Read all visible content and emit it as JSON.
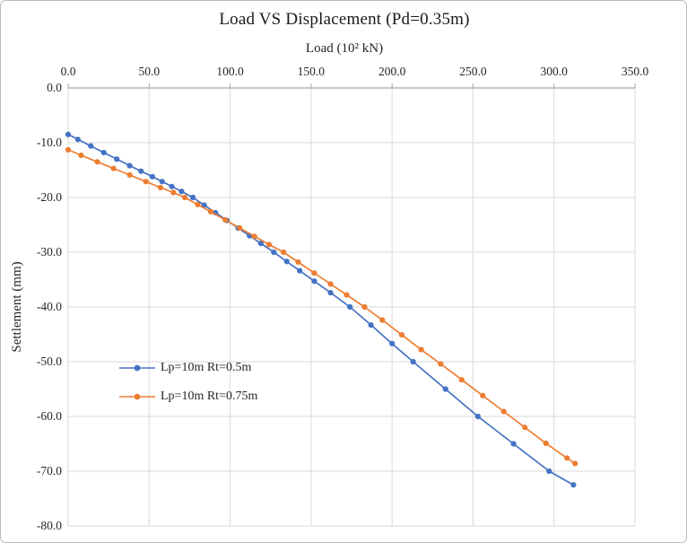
{
  "chart_data": {
    "type": "line",
    "title": "Load VS Displacement  (Pd=0.35m)",
    "xlabel": "Load (10² kN)",
    "ylabel": "Settlement (mm)",
    "xlim": [
      0,
      350
    ],
    "ylim": [
      -80,
      0
    ],
    "x_ticks": [
      0,
      50,
      100,
      150,
      200,
      250,
      300,
      350
    ],
    "x_tick_labels": [
      "0.0",
      "50.0",
      "100.0",
      "150.0",
      "200.0",
      "250.0",
      "300.0",
      "350.0"
    ],
    "y_ticks": [
      0,
      -10,
      -20,
      -30,
      -40,
      -50,
      -60,
      -70,
      -80
    ],
    "y_tick_labels": [
      "0.0",
      "-10.0",
      "-20.0",
      "-30.0",
      "-40.0",
      "-50.0",
      "-60.0",
      "-70.0",
      "-80.0"
    ],
    "grid": true,
    "legend_position": "inside-left",
    "colors": {
      "grid": "#d9d9d9",
      "axis": "#a6a6a6",
      "tick_text": "#262626"
    },
    "series": [
      {
        "name": "Lp=10m Rt=0.5m",
        "color": "#4472C4",
        "points": [
          [
            0,
            -8.5
          ],
          [
            6,
            -9.4
          ],
          [
            14,
            -10.6
          ],
          [
            22,
            -11.8
          ],
          [
            30,
            -13.0
          ],
          [
            38,
            -14.2
          ],
          [
            45,
            -15.2
          ],
          [
            52,
            -16.2
          ],
          [
            58,
            -17.1
          ],
          [
            64,
            -18.0
          ],
          [
            70,
            -18.9
          ],
          [
            77,
            -20.0
          ],
          [
            84,
            -21.4
          ],
          [
            91,
            -22.8
          ],
          [
            98,
            -24.2
          ],
          [
            105,
            -25.6
          ],
          [
            112,
            -27.0
          ],
          [
            119,
            -28.4
          ],
          [
            127,
            -30.0
          ],
          [
            135,
            -31.7
          ],
          [
            143,
            -33.4
          ],
          [
            152,
            -35.3
          ],
          [
            162,
            -37.4
          ],
          [
            174,
            -40.0
          ],
          [
            187,
            -43.3
          ],
          [
            200,
            -46.7
          ],
          [
            213,
            -50.0
          ],
          [
            233,
            -55.0
          ],
          [
            253,
            -60.0
          ],
          [
            275,
            -65.0
          ],
          [
            297,
            -70.0
          ],
          [
            312,
            -72.5
          ]
        ]
      },
      {
        "name": "Lp=10m Rt=0.75m",
        "color": "#ED7D31",
        "points": [
          [
            0,
            -11.3
          ],
          [
            8,
            -12.3
          ],
          [
            18,
            -13.5
          ],
          [
            28,
            -14.7
          ],
          [
            38,
            -15.9
          ],
          [
            48,
            -17.1
          ],
          [
            57,
            -18.2
          ],
          [
            65,
            -19.1
          ],
          [
            72,
            -20.0
          ],
          [
            80,
            -21.3
          ],
          [
            88,
            -22.6
          ],
          [
            97,
            -24.1
          ],
          [
            106,
            -25.6
          ],
          [
            115,
            -27.1
          ],
          [
            124,
            -28.6
          ],
          [
            133,
            -30.0
          ],
          [
            142,
            -31.8
          ],
          [
            152,
            -33.8
          ],
          [
            162,
            -35.8
          ],
          [
            172,
            -37.8
          ],
          [
            183,
            -40.0
          ],
          [
            194,
            -42.4
          ],
          [
            206,
            -45.1
          ],
          [
            218,
            -47.8
          ],
          [
            230,
            -50.4
          ],
          [
            243,
            -53.3
          ],
          [
            256,
            -56.2
          ],
          [
            269,
            -59.1
          ],
          [
            282,
            -62.0
          ],
          [
            295,
            -64.9
          ],
          [
            308,
            -67.6
          ],
          [
            313,
            -68.6
          ]
        ]
      }
    ]
  }
}
